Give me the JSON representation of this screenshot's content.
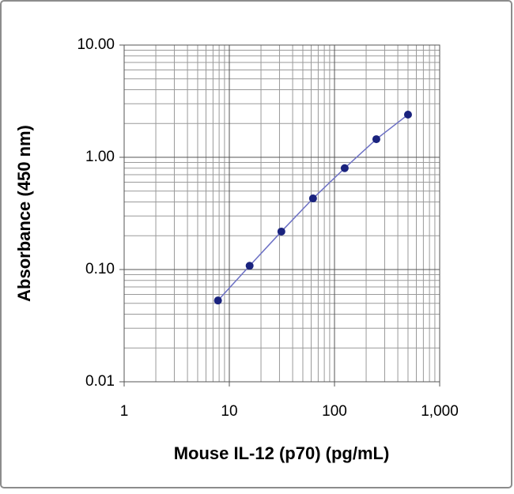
{
  "chart_data": {
    "type": "line",
    "x_label": "Mouse IL-12 (p70) (pg/mL)",
    "y_label": "Absorbance (450 nm)",
    "x_log": true,
    "y_log": true,
    "grid": true,
    "minor_grid": true,
    "xlim": [
      1,
      1000
    ],
    "xticks": [
      1,
      10,
      100,
      {
        "value": 1000,
        "label": "1,000"
      }
    ],
    "ylim": [
      0.01,
      10
    ],
    "yticks": [
      {
        "value": 0.01,
        "label": "0.01"
      },
      {
        "value": 0.1,
        "label": "0.10"
      },
      {
        "value": 1,
        "label": "1.00"
      },
      {
        "value": 10,
        "label": "10.00"
      }
    ],
    "x": [
      7.8,
      15.6,
      31.25,
      62.5,
      125,
      250,
      500
    ],
    "series": [
      {
        "color": "#1a237e",
        "line_color": "#6b6fc4",
        "values": [
          0.053,
          0.108,
          0.218,
          0.43,
          0.8,
          1.45,
          2.4
        ]
      }
    ]
  }
}
